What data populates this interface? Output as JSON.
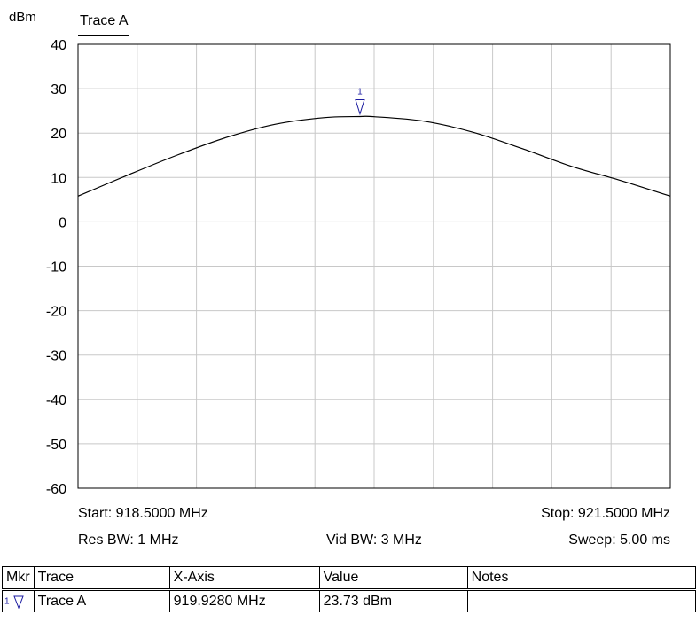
{
  "chart_data": {
    "type": "line",
    "unit_label": "dBm",
    "trace_title": "Trace A",
    "ylim": [
      -60,
      40
    ],
    "yticks": [
      "40",
      "30",
      "20",
      "10",
      "0",
      "-10",
      "-20",
      "-30",
      "-40",
      "-50",
      "-60"
    ],
    "xlim": [
      918.5,
      921.5
    ],
    "grid": true,
    "series": [
      {
        "name": "Trace A",
        "color": "#000000",
        "x": [
          918.5,
          918.75,
          919.0,
          919.25,
          919.5,
          919.75,
          919.928,
          920.0,
          920.25,
          920.5,
          920.75,
          921.0,
          921.25,
          921.5
        ],
        "y": [
          5.8,
          10.5,
          15.0,
          19.0,
          22.0,
          23.5,
          23.73,
          23.7,
          22.7,
          20.2,
          16.5,
          12.5,
          9.3,
          5.8
        ]
      }
    ],
    "markers": [
      {
        "id": "1",
        "x": 919.928,
        "y": 23.73
      }
    ]
  },
  "footer": {
    "start": "Start: 918.5000 MHz",
    "stop": "Stop: 921.5000 MHz",
    "res_bw": "Res BW: 1 MHz",
    "vid_bw": "Vid BW: 3 MHz",
    "sweep": "Sweep: 5.00 ms"
  },
  "marker_table": {
    "headers": {
      "mkr": "Mkr",
      "trace": "Trace",
      "xaxis": "X-Axis",
      "value": "Value",
      "notes": "Notes"
    },
    "rows": [
      {
        "mkr": "1",
        "trace": "Trace A",
        "xaxis": "919.9280 MHz",
        "value": "23.73 dBm",
        "notes": ""
      }
    ]
  }
}
